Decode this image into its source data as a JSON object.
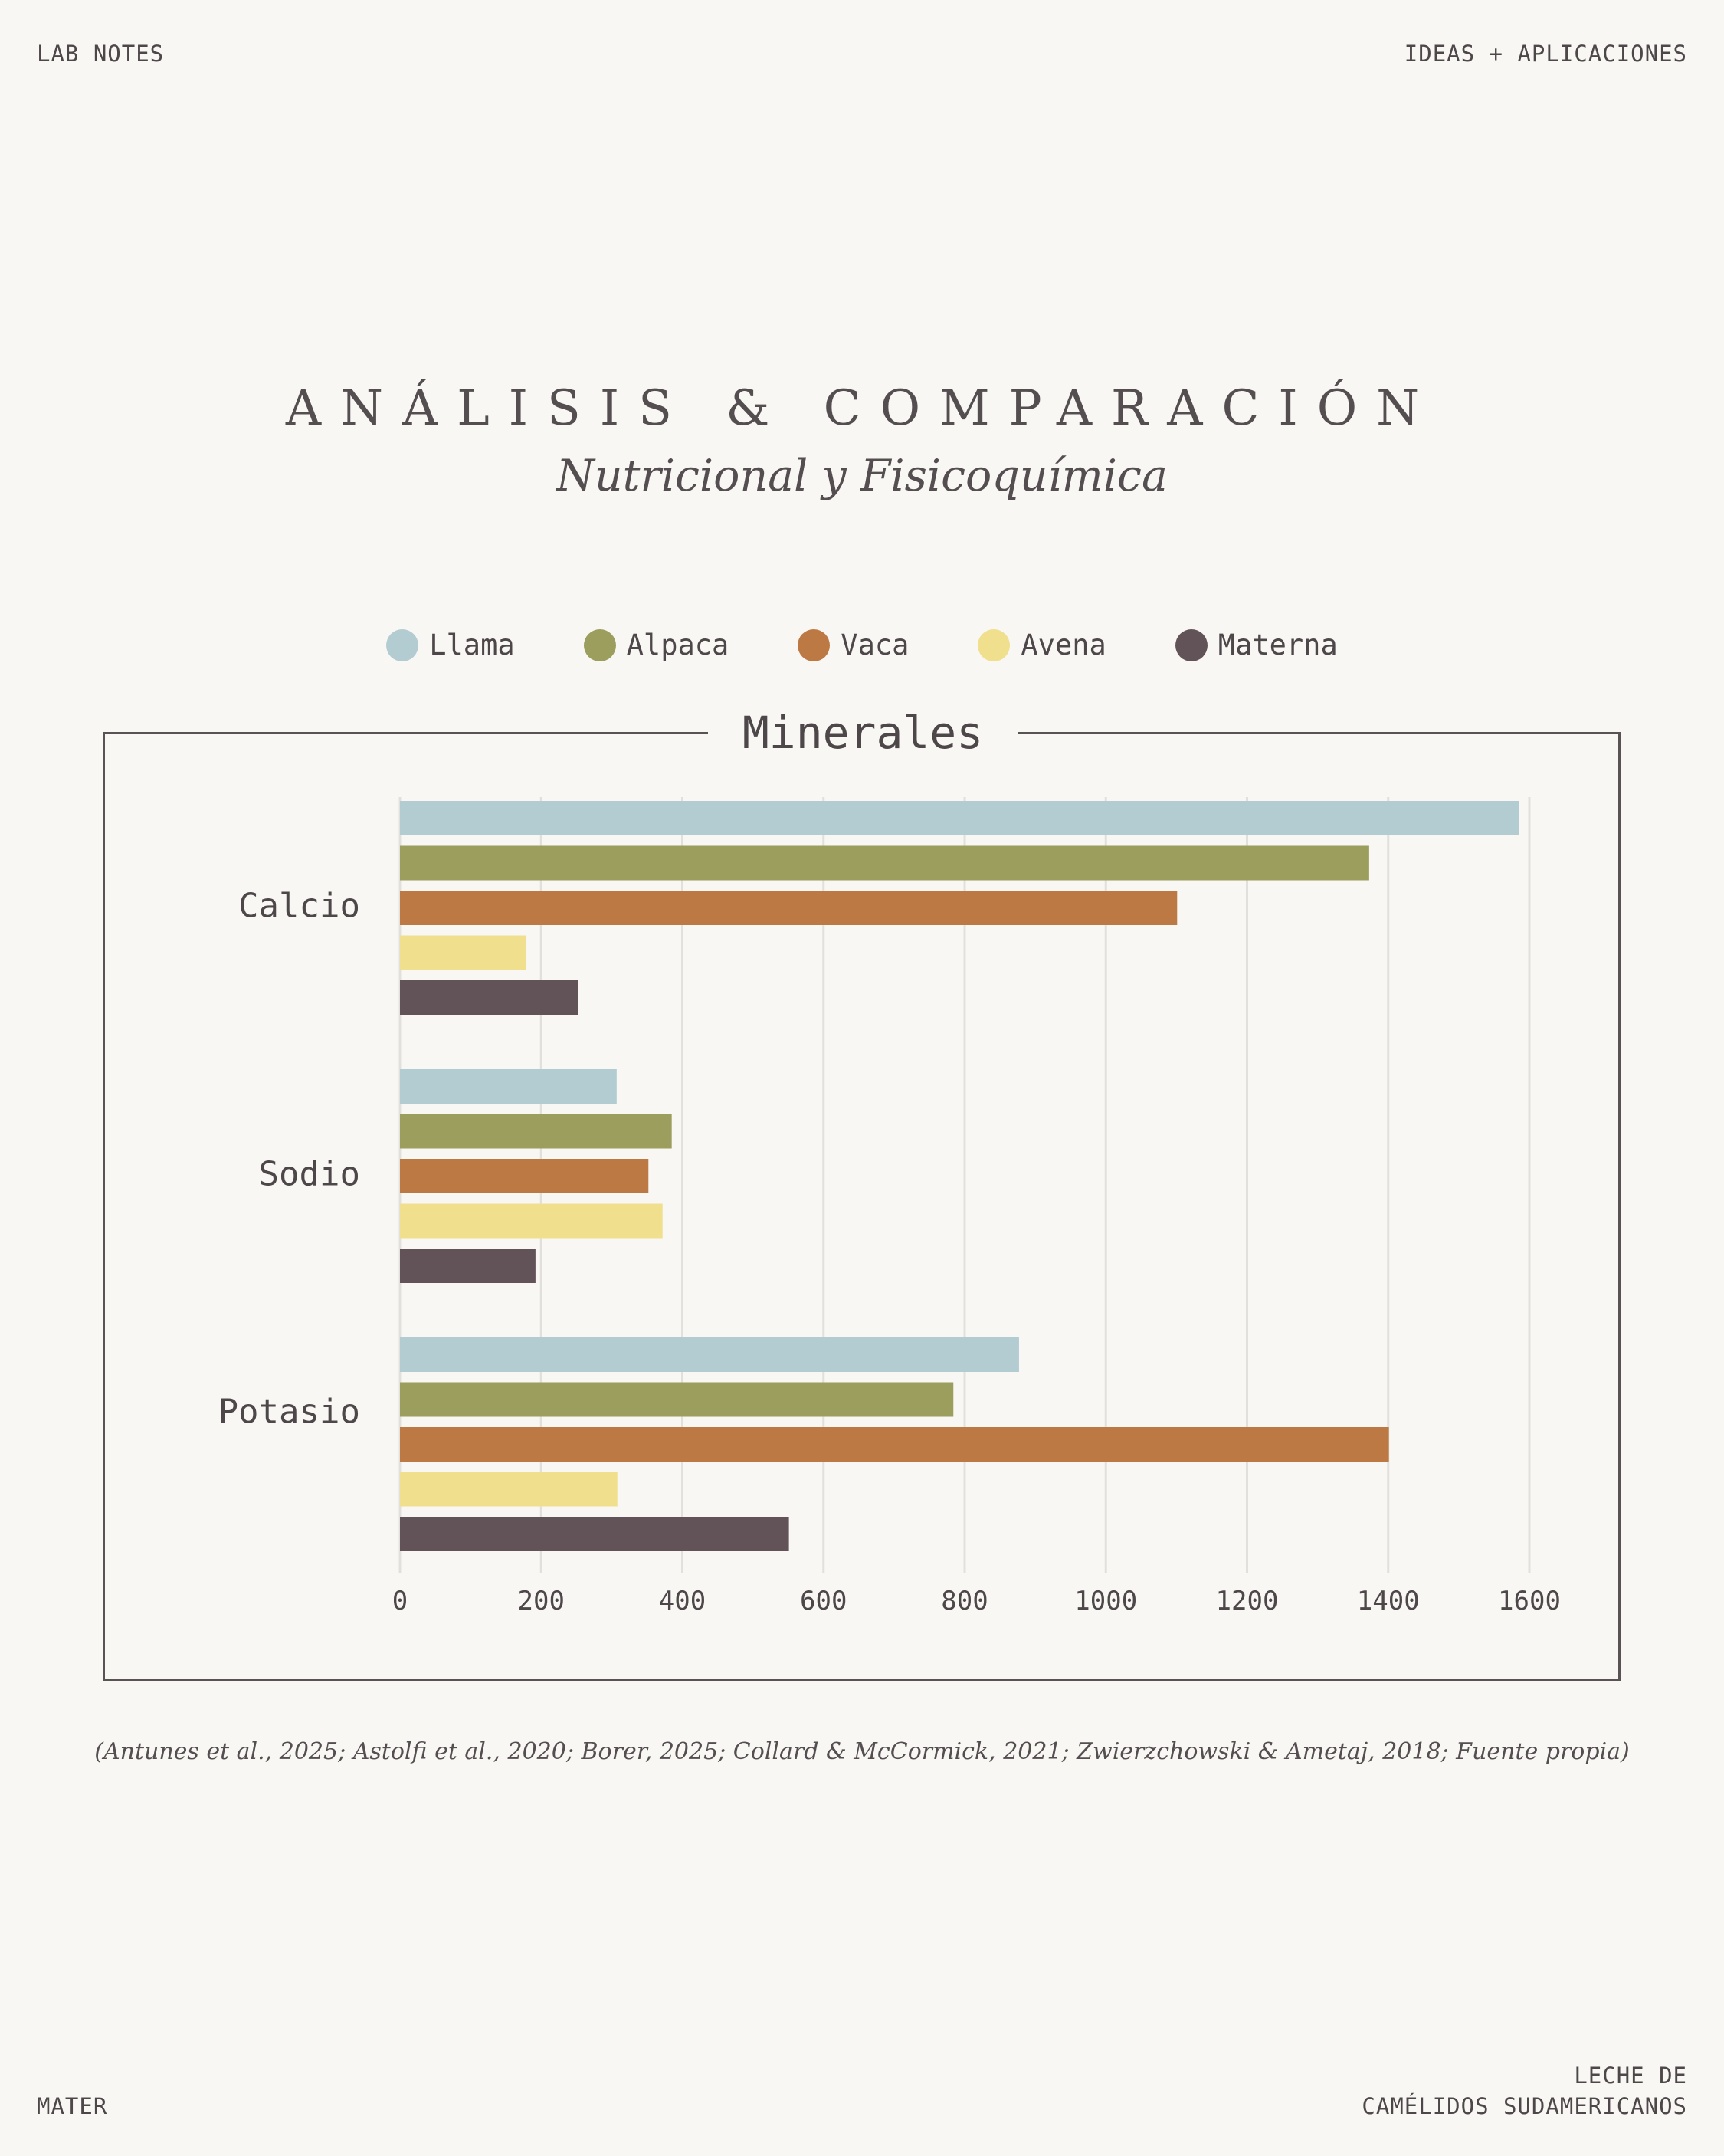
{
  "header": {
    "left": "LAB NOTES",
    "right": "IDEAS + APLICACIONES"
  },
  "footer": {
    "left": "MATER",
    "right_line1": "LECHE DE",
    "right_line2": "CAMÉLIDOS SUDAMERICANOS"
  },
  "title": "ANÁLISIS & COMPARACIÓN",
  "subtitle": "Nutricional y Fisicoquímica",
  "source": "(Antunes et al., 2025; Astolfi et al., 2020; Borer, 2025; Collard & McCormick, 2021; Zwierzchowski & Ametaj, 2018; Fuente propia)",
  "colors": {
    "Llama": "#b3ccd2",
    "Alpaca": "#9c9e5d",
    "Vaca": "#bd7943",
    "Avena": "#f0df8c",
    "Materna": "#615357"
  },
  "chart_data": {
    "type": "bar",
    "orientation": "horizontal",
    "title": "Minerales",
    "categories": [
      "Calcio",
      "Sodio",
      "Potasio"
    ],
    "series": [
      {
        "name": "Llama",
        "values": [
          1585,
          307,
          877
        ]
      },
      {
        "name": "Alpaca",
        "values": [
          1373,
          385,
          784
        ]
      },
      {
        "name": "Vaca",
        "values": [
          1101,
          352,
          1401
        ]
      },
      {
        "name": "Avena",
        "values": [
          178,
          372,
          308
        ]
      },
      {
        "name": "Materna",
        "values": [
          252,
          192,
          551
        ]
      }
    ],
    "xlim": [
      0,
      1600
    ],
    "xticks": [
      "0",
      "200",
      "400",
      "600",
      "800",
      "1000",
      "1200",
      "1400",
      "1600"
    ],
    "grid": true,
    "legend": "top-center"
  }
}
